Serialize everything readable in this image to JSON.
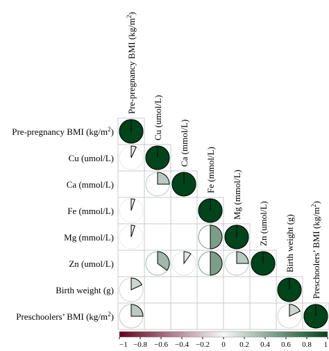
{
  "chart_data": {
    "type": "heatmap",
    "glyph": "pie",
    "variables": [
      [
        "Pre-pregnancy BMI (kg/m",
        "2",
        ")"
      ],
      [
        "Cu (umol/L)"
      ],
      [
        "Ca (mmol/L)"
      ],
      [
        "Fe (mmol/L)"
      ],
      [
        "Mg (mmol/L)"
      ],
      [
        "Zn (umol/L)"
      ],
      [
        "Birth weight (g)"
      ],
      [
        "Preschoolers’ BMI (kg/m",
        "2",
        ")"
      ]
    ],
    "matrix": [
      [
        1.0,
        null,
        null,
        null,
        null,
        null,
        null,
        null
      ],
      [
        0.07,
        1.0,
        null,
        null,
        null,
        null,
        null,
        null
      ],
      [
        null,
        0.25,
        1.0,
        null,
        null,
        null,
        null,
        null
      ],
      [
        0.05,
        null,
        null,
        1.0,
        null,
        null,
        null,
        null
      ],
      [
        0.05,
        null,
        null,
        0.5,
        1.0,
        null,
        null,
        null
      ],
      [
        null,
        0.35,
        0.1,
        0.5,
        0.25,
        1.0,
        null,
        null
      ],
      [
        0.18,
        null,
        null,
        null,
        null,
        null,
        1.0,
        null
      ],
      [
        0.25,
        null,
        null,
        null,
        null,
        null,
        0.18,
        1.0
      ]
    ],
    "colorbar": {
      "range": [
        -1,
        1
      ],
      "ticks": [
        "−1",
        "−0.8",
        "−0.6",
        "−0.4",
        "−0.2",
        "0",
        "0.2",
        "0.4",
        "0.6",
        "0.8",
        "1"
      ],
      "colors": [
        "#67001f",
        "#f7f7f7",
        "#00441b"
      ]
    },
    "grid": true
  }
}
